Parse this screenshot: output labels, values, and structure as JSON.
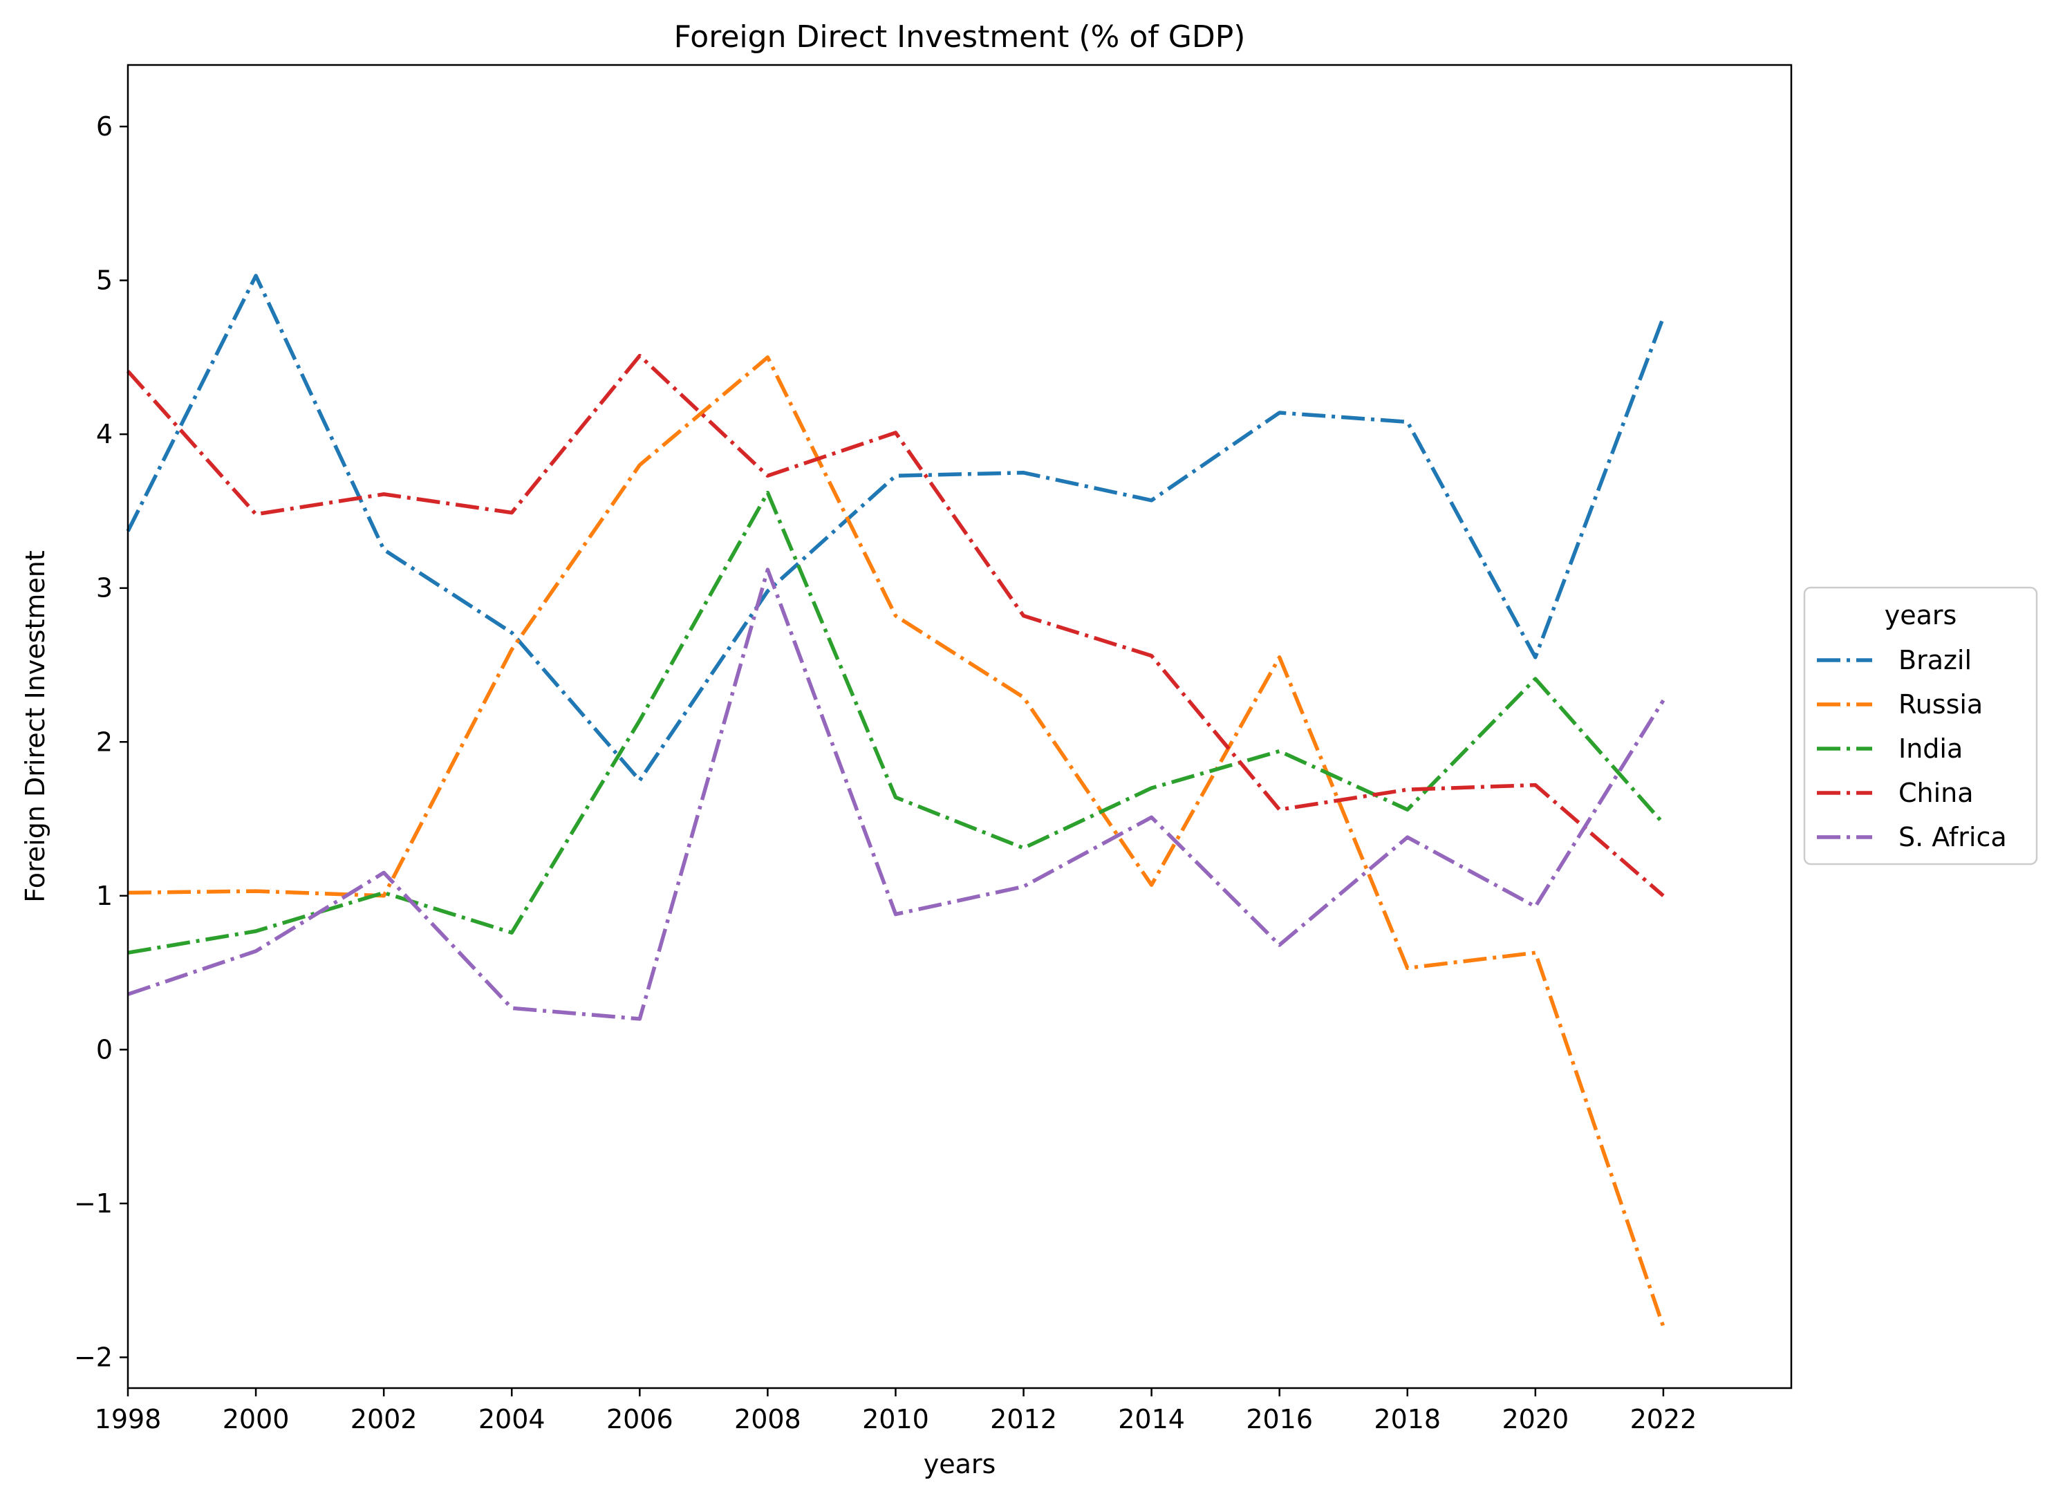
{
  "chart_data": {
    "type": "line",
    "title": "Foreign Direct Investment (% of GDP)",
    "xlabel": "years",
    "ylabel": "Foreign Drirect Investment",
    "xlim": [
      1998,
      2024
    ],
    "ylim": [
      -2.2,
      6.4
    ],
    "x_ticks": [
      1998,
      2000,
      2002,
      2004,
      2006,
      2008,
      2010,
      2012,
      2014,
      2016,
      2018,
      2020,
      2022
    ],
    "y_ticks": [
      -2,
      -1,
      0,
      1,
      2,
      3,
      4,
      5,
      6
    ],
    "y_tick_labels": [
      "−2",
      "−1",
      "0",
      "1",
      "2",
      "3",
      "4",
      "5",
      "6"
    ],
    "x": [
      1998,
      2000,
      2002,
      2004,
      2006,
      2008,
      2010,
      2012,
      2014,
      2016,
      2018,
      2020,
      2022
    ],
    "legend": {
      "title": "years",
      "placement": "center-right (outside plot)"
    },
    "grid": false,
    "series": [
      {
        "name": "Brazil",
        "color": "#1f77b4",
        "values": [
          3.37,
          5.03,
          3.25,
          2.71,
          1.75,
          2.98,
          3.73,
          3.75,
          3.57,
          4.14,
          4.08,
          2.55,
          4.76
        ]
      },
      {
        "name": "Russia",
        "color": "#ff7f0e",
        "values": [
          1.02,
          1.03,
          1.0,
          2.6,
          3.8,
          4.5,
          2.82,
          2.29,
          1.07,
          2.55,
          0.53,
          0.63,
          -1.8
        ]
      },
      {
        "name": "India",
        "color": "#2ca02c",
        "values": [
          0.63,
          0.77,
          1.02,
          0.76,
          2.14,
          3.62,
          1.64,
          1.31,
          1.7,
          1.94,
          1.56,
          2.41,
          1.47
        ]
      },
      {
        "name": "China",
        "color": "#d62728",
        "values": [
          4.41,
          3.48,
          3.61,
          3.49,
          4.51,
          3.73,
          4.01,
          2.82,
          2.56,
          1.56,
          1.69,
          1.72,
          1.0
        ]
      },
      {
        "name": "S. Africa",
        "color": "#9467bd",
        "values": [
          0.36,
          0.64,
          1.15,
          0.27,
          0.2,
          3.12,
          0.88,
          1.06,
          1.51,
          0.68,
          1.38,
          0.93,
          2.27
        ]
      }
    ]
  }
}
